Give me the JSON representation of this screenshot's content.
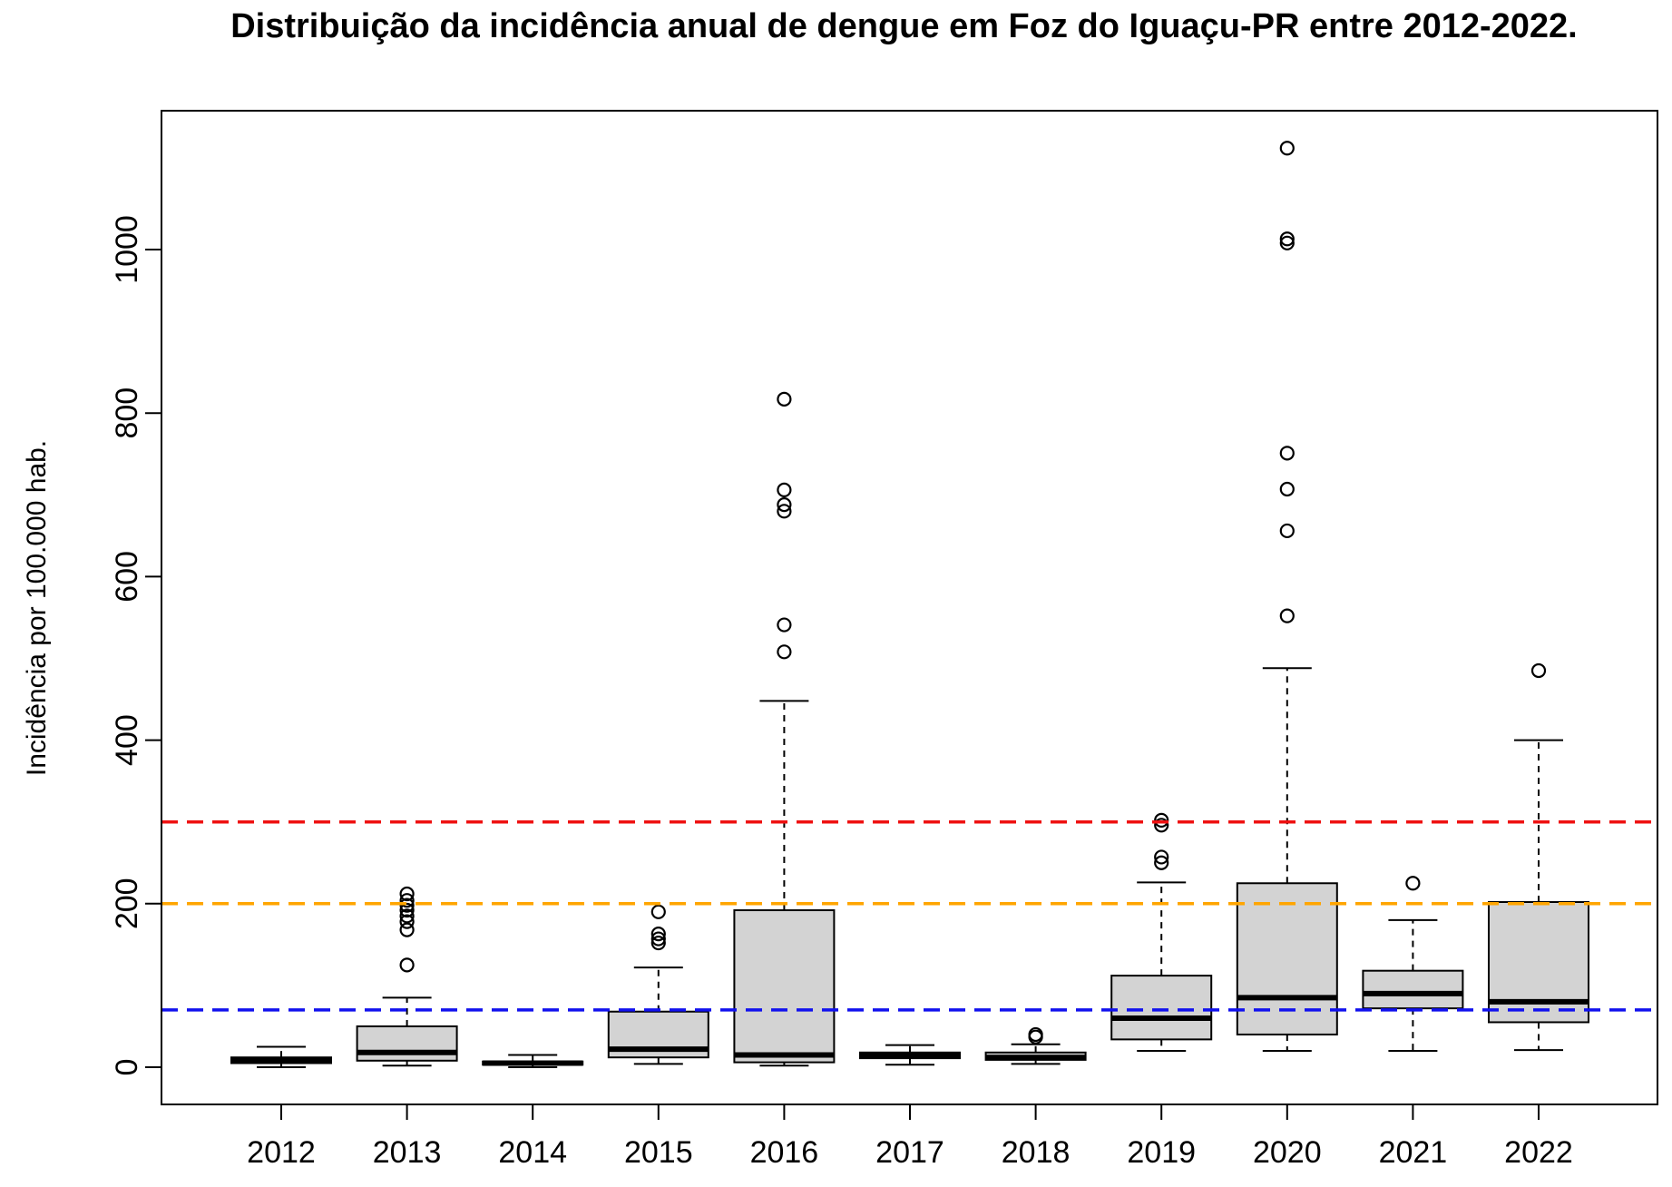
{
  "chart_data": {
    "type": "boxplot",
    "title": "Distribuição da incidência anual de dengue em Foz do Iguaçu-PR entre 2012-2022.",
    "xlabel": "",
    "ylabel": "Incidência por 100.000 hab.",
    "ylim": [
      -45,
      1170
    ],
    "yticks": [
      0,
      200,
      400,
      600,
      800,
      1000
    ],
    "ytick_labels": [
      "0",
      "200",
      "400",
      "600",
      "800",
      "1000"
    ],
    "categories": [
      "2012",
      "2013",
      "2014",
      "2015",
      "2016",
      "2017",
      "2018",
      "2019",
      "2020",
      "2021",
      "2022"
    ],
    "boxes": [
      {
        "year": "2012",
        "whisker_low": 0,
        "q1": 5,
        "median": 8,
        "q3": 12,
        "whisker_high": 25,
        "outliers": []
      },
      {
        "year": "2013",
        "whisker_low": 2,
        "q1": 8,
        "median": 18,
        "q3": 50,
        "whisker_high": 85,
        "outliers": [
          125,
          168,
          178,
          185,
          192,
          198,
          204,
          212
        ]
      },
      {
        "year": "2014",
        "whisker_low": 0,
        "q1": 3,
        "median": 5,
        "q3": 7,
        "whisker_high": 15,
        "outliers": []
      },
      {
        "year": "2015",
        "whisker_low": 4,
        "q1": 12,
        "median": 22,
        "q3": 68,
        "whisker_high": 122,
        "outliers": [
          152,
          157,
          163,
          190
        ]
      },
      {
        "year": "2016",
        "whisker_low": 2,
        "q1": 6,
        "median": 15,
        "q3": 192,
        "whisker_high": 448,
        "outliers": [
          508,
          541,
          680,
          688,
          706,
          817
        ]
      },
      {
        "year": "2017",
        "whisker_low": 3,
        "q1": 11,
        "median": 15,
        "q3": 18,
        "whisker_high": 27,
        "outliers": []
      },
      {
        "year": "2018",
        "whisker_low": 4,
        "q1": 9,
        "median": 12,
        "q3": 18,
        "whisker_high": 28,
        "outliers": [
          37,
          40
        ]
      },
      {
        "year": "2019",
        "whisker_low": 20,
        "q1": 34,
        "median": 60,
        "q3": 112,
        "whisker_high": 226,
        "outliers": [
          250,
          257,
          296,
          302
        ]
      },
      {
        "year": "2020",
        "whisker_low": 20,
        "q1": 40,
        "median": 85,
        "q3": 225,
        "whisker_high": 488,
        "outliers": [
          552,
          656,
          707,
          751,
          1008,
          1013,
          1124
        ]
      },
      {
        "year": "2021",
        "whisker_low": 20,
        "q1": 72,
        "median": 90,
        "q3": 118,
        "whisker_high": 180,
        "outliers": [
          225
        ]
      },
      {
        "year": "2022",
        "whisker_low": 21,
        "q1": 55,
        "median": 80,
        "q3": 202,
        "whisker_high": 400,
        "outliers": [
          485
        ]
      }
    ],
    "reference_lines": [
      {
        "value": 300,
        "color": "#ee1111"
      },
      {
        "value": 200,
        "color": "#ffa500"
      },
      {
        "value": 70,
        "color": "#1111ee"
      }
    ],
    "box_fill": "#d3d3d3",
    "grid": false,
    "legend": "none"
  }
}
